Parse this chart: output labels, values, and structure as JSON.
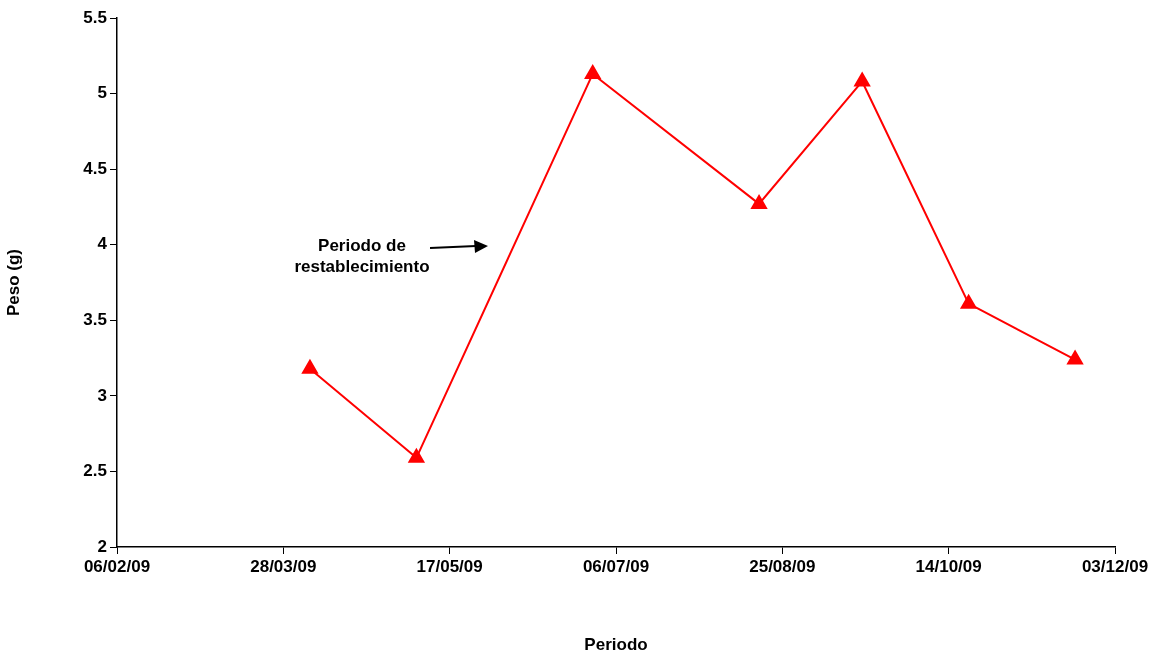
{
  "chart_data": {
    "type": "line",
    "xlabel": "Periodo",
    "ylabel": "Peso (g)",
    "x": [
      "2009-04-05",
      "2009-05-07",
      "2009-06-29",
      "2009-08-18",
      "2009-09-18",
      "2009-10-20",
      "2009-11-21"
    ],
    "series": [
      {
        "color": "#ff0000",
        "values": [
          3.18,
          2.59,
          5.13,
          4.27,
          5.08,
          3.61,
          3.24
        ]
      }
    ],
    "xlim": [
      "2009-02-06",
      "2009-12-03"
    ],
    "xticks": [
      {
        "value": "2009-02-06",
        "label": "06/02/09"
      },
      {
        "value": "2009-03-28",
        "label": "28/03/09"
      },
      {
        "value": "2009-05-17",
        "label": "17/05/09"
      },
      {
        "value": "2009-07-06",
        "label": "06/07/09"
      },
      {
        "value": "2009-08-25",
        "label": "25/08/09"
      },
      {
        "value": "2009-10-14",
        "label": "14/10/09"
      },
      {
        "value": "2009-12-03",
        "label": "03/12/09"
      }
    ],
    "ylim": [
      2,
      5.5
    ],
    "yticks": [
      2,
      2.5,
      3,
      3.5,
      4,
      4.5,
      5,
      5.5
    ],
    "annotations": [
      "Periodo de restablecimiento"
    ],
    "grid": false,
    "legend": false,
    "marker": "triangle",
    "line_style": "solid"
  }
}
